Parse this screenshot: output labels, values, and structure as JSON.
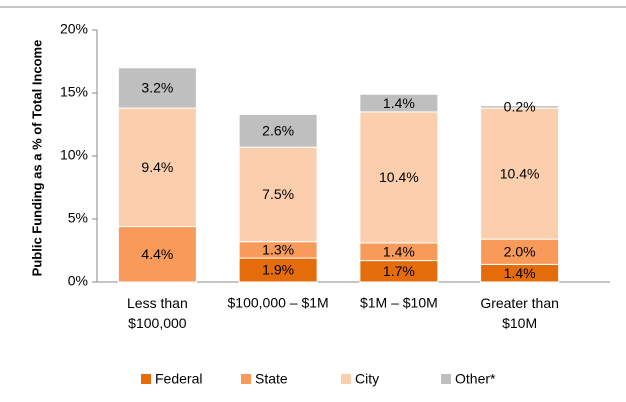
{
  "chart_data": {
    "type": "stacked_bar",
    "y_label": "Public Funding as a % of Total Income",
    "categories": [
      "Less than $100,000",
      "$100,000 – $1M",
      "$1M – $10M",
      "Greater than $10M"
    ],
    "series": [
      {
        "name": "Federal",
        "color": "#e46c0a",
        "values": [
          null,
          1.9,
          1.7,
          1.4
        ],
        "value_labels": [
          null,
          "1.9%",
          "1.7%",
          "1.4%"
        ]
      },
      {
        "name": "State",
        "color": "#f79a5a",
        "values": [
          4.4,
          1.3,
          1.4,
          2.0
        ],
        "value_labels": [
          "4.4%",
          "1.3%",
          "1.4%",
          "2.0%"
        ]
      },
      {
        "name": "City",
        "color": "#fbcfae",
        "values": [
          9.4,
          7.5,
          10.4,
          10.4
        ],
        "value_labels": [
          "9.4%",
          "7.5%",
          "10.4%",
          "10.4%"
        ]
      },
      {
        "name": "Other*",
        "color": "#bfbfbf",
        "values": [
          3.2,
          2.6,
          1.4,
          0.2
        ],
        "value_labels": [
          "3.2%",
          "2.6%",
          "1.4%",
          "0.2%"
        ]
      }
    ],
    "ylim": [
      0,
      20
    ],
    "yticks": [
      {
        "value": 0,
        "label": "0%"
      },
      {
        "value": 5,
        "label": "5%"
      },
      {
        "value": 10,
        "label": "10%"
      },
      {
        "value": 15,
        "label": "15%"
      },
      {
        "value": 20,
        "label": "20%"
      }
    ],
    "legend": "bottom"
  }
}
